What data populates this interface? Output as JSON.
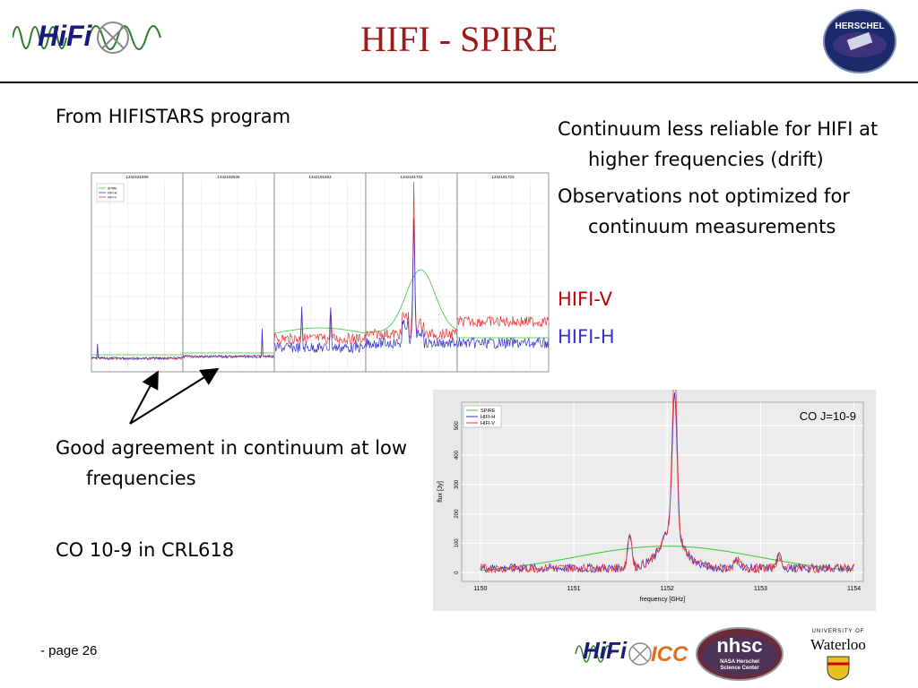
{
  "slide": {
    "title": "HIFI - SPIRE",
    "page_label": "- page 26"
  },
  "left": {
    "program": "From HIFISTARS program",
    "agreement": "Good agreement in continuum at low frequencies",
    "co_line": "CO 10-9 in CRL618"
  },
  "right": {
    "point1": "Continuum less reliable for HIFI at higher frequencies (drift)",
    "point2": "Observations not optimized for continuum measurements",
    "hifi_v": "HIFI-V",
    "hifi_h": "HIFI-H"
  },
  "colors": {
    "title": "#9b1a1a",
    "hifi_v": "#c00000",
    "hifi_h": "#3333cc",
    "spire": "#33cc33"
  },
  "panels_chart": {
    "panel_titles": [
      "1342191599",
      "1342192536",
      "1342191653",
      "1342191702",
      "1342191723"
    ],
    "legend": [
      "SPIRE",
      "HIFI-H",
      "HIFI-V"
    ]
  },
  "co_chart": {
    "label": "CO J=10-9",
    "xlabel": "frequency [GHz]",
    "ylabel": "flux [Jy]",
    "x_ticks": [
      "1150",
      "1151",
      "1152",
      "1153",
      "1154"
    ],
    "y_ticks": [
      "0",
      "100",
      "200",
      "300",
      "400",
      "500"
    ],
    "legend": [
      "SPIRE",
      "HIFI-H",
      "HIFI-V"
    ]
  },
  "logos": {
    "herschel": "HERSCHEL",
    "hifi": "HiFi",
    "icc": "ICC",
    "nhsc": "nhsc",
    "nhsc_sub": "NASA Herschel Science Center",
    "uw_top": "UNIVERSITY OF",
    "uw": "Waterloo"
  }
}
